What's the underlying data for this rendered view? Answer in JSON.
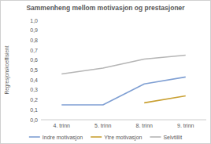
{
  "chart_data": {
    "type": "line",
    "title": "Sammenheng mellom motivasjon og prestasjoner",
    "y_label": "Regresjonskoeffisient",
    "categories": [
      "4. trinn",
      "5. trinn",
      "8. trinn",
      "9. trinn"
    ],
    "series": [
      {
        "name": "Indre motivasjon",
        "color": "#7f9fd3",
        "values": [
          0.15,
          0.15,
          0.36,
          0.43
        ]
      },
      {
        "name": "Ytre motivasjon",
        "color": "#c9a032",
        "values": [
          null,
          null,
          0.17,
          0.24
        ]
      },
      {
        "name": "Selvtillit",
        "color": "#b5b5b5",
        "values": [
          0.46,
          0.52,
          0.61,
          0.65
        ]
      }
    ],
    "ylim": [
      0,
      1
    ],
    "yticks": [
      {
        "value": 0,
        "label": "0,0"
      },
      {
        "value": 0.1,
        "label": "0,1"
      },
      {
        "value": 0.2,
        "label": "0,2"
      },
      {
        "value": 0.3,
        "label": "0,3"
      },
      {
        "value": 0.4,
        "label": "0,4"
      },
      {
        "value": 0.5,
        "label": "0,5"
      },
      {
        "value": 0.6,
        "label": "0,6"
      },
      {
        "value": 0.7,
        "label": "0,7"
      },
      {
        "value": 0.8,
        "label": "0,8"
      },
      {
        "value": 0.9,
        "label": "0,9"
      },
      {
        "value": 1,
        "label": "1,0"
      }
    ],
    "grid": false,
    "legend": "bottom"
  }
}
